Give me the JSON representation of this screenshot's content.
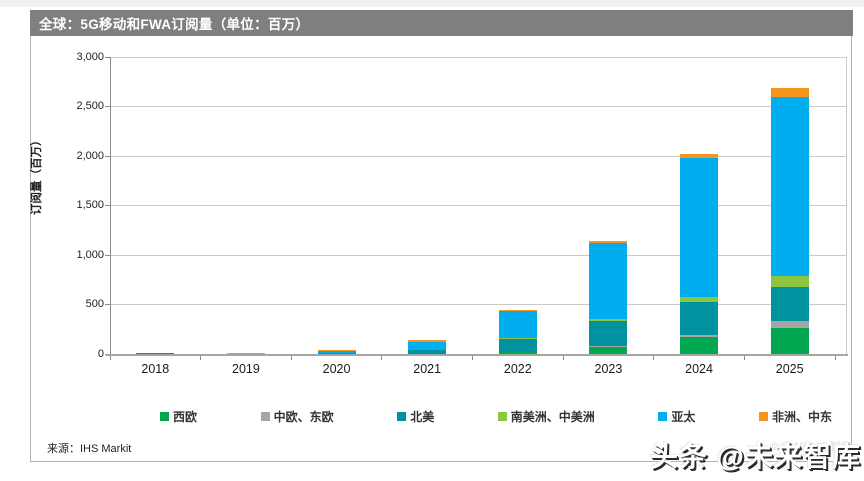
{
  "header": {
    "title": "全球：5G移动和FWA订阅量（单位：百万）"
  },
  "footer": {
    "source_label": "来源：IHS Markit"
  },
  "watermark": {
    "text": "头条 @未来智库",
    "copyright_faint": "© 2019 IHS 智库"
  },
  "colors": {
    "title_bar_bg": "#7f7f7f",
    "gridline": "#c9c9c9",
    "axis": "#8c8c8c"
  },
  "chart_data": {
    "type": "bar",
    "stacked": true,
    "title": "全球：5G移动和FWA订阅量（单位：百万）",
    "xlabel": "",
    "ylabel": "订阅量（百万）",
    "ylim": [
      0,
      3000
    ],
    "grid": true,
    "legend_position": "bottom",
    "yticks": [
      {
        "value": 0,
        "label": "0"
      },
      {
        "value": 500,
        "label": "500"
      },
      {
        "value": 1000,
        "label": "1,000"
      },
      {
        "value": 1500,
        "label": "1,500"
      },
      {
        "value": 2000,
        "label": "2,000"
      },
      {
        "value": 2500,
        "label": "2,500"
      },
      {
        "value": 3000,
        "label": "3,000"
      }
    ],
    "categories": [
      "2018",
      "2019",
      "2020",
      "2021",
      "2022",
      "2023",
      "2024",
      "2025"
    ],
    "series": [
      {
        "name": "西欧",
        "color": "#00A650",
        "values": [
          0,
          0,
          0,
          0,
          27,
          75,
          170,
          265
        ]
      },
      {
        "name": "中欧、东欧",
        "color": "#A6A6A6",
        "values": [
          0,
          0,
          0,
          0,
          0,
          10,
          25,
          65
        ]
      },
      {
        "name": "北美",
        "color": "#00939F",
        "values": [
          13,
          2,
          15,
          45,
          125,
          250,
          330,
          350
        ]
      },
      {
        "name": "南美洲、中美洲",
        "color": "#8DC63F",
        "values": [
          0,
          0,
          0,
          0,
          5,
          20,
          50,
          105
        ]
      },
      {
        "name": "亚太",
        "color": "#00AEEF",
        "values": [
          0,
          3,
          15,
          75,
          275,
          765,
          1405,
          1815
        ]
      },
      {
        "name": "非洲、中东",
        "color": "#F7941D",
        "values": [
          0,
          10,
          12,
          18,
          10,
          20,
          40,
          90
        ]
      }
    ],
    "totals": [
      13,
      15,
      42,
      138,
      442,
      1140,
      2020,
      2690
    ]
  }
}
